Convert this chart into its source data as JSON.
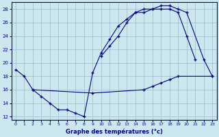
{
  "title": "Graphe des températures (°c)",
  "bg_color": "#cce8ee",
  "line_color": "#00008b",
  "grid_color": "#99bbcc",
  "xlim": [
    -0.5,
    23.5
  ],
  "ylim": [
    11.5,
    29.0
  ],
  "yticks": [
    12,
    14,
    16,
    18,
    20,
    22,
    24,
    26,
    28
  ],
  "xticks": [
    0,
    1,
    2,
    3,
    4,
    5,
    6,
    7,
    8,
    9,
    10,
    11,
    12,
    13,
    14,
    15,
    16,
    17,
    18,
    19,
    20,
    21,
    22,
    23
  ],
  "curves": [
    {
      "x": [
        0,
        1,
        2,
        3,
        4,
        5,
        6,
        7,
        8,
        9,
        10,
        11,
        12,
        13,
        14,
        15,
        16,
        17,
        18,
        19,
        20,
        21
      ],
      "y": [
        19.0,
        18.0,
        16.0,
        15.0,
        14.0,
        13.0,
        13.0,
        12.5,
        12.0,
        18.5,
        21.5,
        23.5,
        25.5,
        26.5,
        27.5,
        28.0,
        28.0,
        28.0,
        28.0,
        27.5,
        24.0,
        20.5
      ]
    },
    {
      "x": [
        10,
        11,
        12,
        13,
        14,
        15,
        16,
        17,
        18,
        19,
        20,
        22,
        23
      ],
      "y": [
        21.0,
        22.5,
        24.0,
        26.0,
        27.5,
        27.5,
        28.0,
        28.5,
        28.5,
        28.0,
        27.5,
        20.5,
        18.0
      ]
    },
    {
      "x": [
        2,
        9,
        15,
        16,
        17,
        18,
        19,
        23
      ],
      "y": [
        16.0,
        15.5,
        16.0,
        16.5,
        17.0,
        17.5,
        18.0,
        18.0
      ]
    }
  ]
}
